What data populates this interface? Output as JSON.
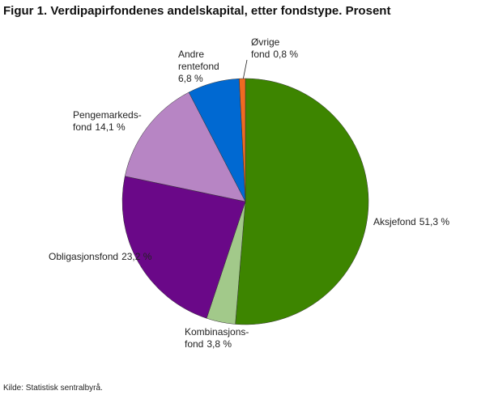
{
  "chart_data": {
    "type": "pie",
    "title": "Figur 1. Verdipapirfondenes andelskapital, etter fondstype. Prosent",
    "categories": [
      [
        "Aksjefond"
      ],
      [
        "Kombinasjons-",
        "fond"
      ],
      [
        "Obligasjonsfond"
      ],
      [
        "Pengemarkeds-",
        "fond"
      ],
      [
        "Andre",
        "rentefond"
      ],
      [
        "Øvrige",
        "fond"
      ]
    ],
    "values": [
      51.3,
      3.8,
      23.2,
      14.1,
      6.8,
      0.8
    ],
    "value_labels": [
      "51,3 %",
      "3,8 %",
      "23,2 %",
      "14,1 %",
      "6,8 %",
      "0,8 %"
    ],
    "colors": [
      "#3d8500",
      "#a2c98a",
      "#6a0888",
      "#b785c4",
      "#0069d2",
      "#f06a21"
    ],
    "source": "Kilde: Statistisk sentralbyrå."
  }
}
